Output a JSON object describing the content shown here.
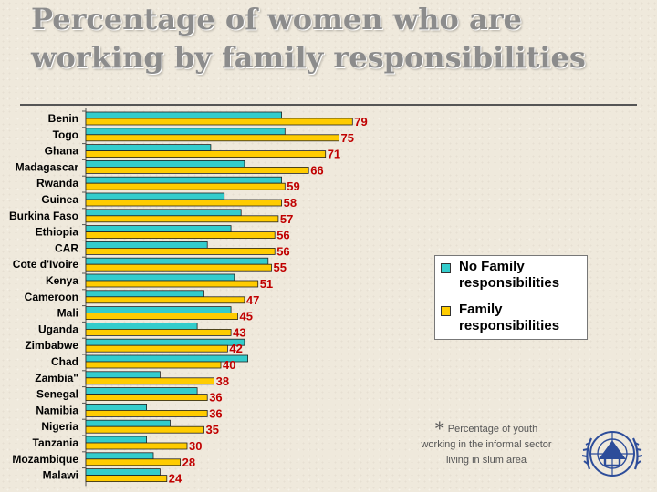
{
  "title": "Percentage of women who are working by family responsibilities",
  "footnote": {
    "marker": "*",
    "text": "Percentage of youth working in the informal sector living in slum area"
  },
  "logo": {
    "name": "UN-HABITAT emblem",
    "color": "#2d4d9a"
  },
  "colors": {
    "no_family": "#33cccc",
    "family": "#ffcc00",
    "bar_outline": "#222222",
    "value_label": "#c00000"
  },
  "chart_data": {
    "type": "bar",
    "orientation": "horizontal",
    "title": "Percentage of women who are working by family responsibilities",
    "categories": [
      "Benin",
      "Togo",
      "Ghana",
      "Madagascar",
      "Rwanda",
      "Guinea",
      "Burkina Faso",
      "Ethiopia",
      "CAR",
      "Cote d'Ivoire",
      "Kenya",
      "Cameroon",
      "Mali",
      "Uganda",
      "Zimbabwe",
      "Chad",
      "Zambia\"",
      "Senegal",
      "Namibia",
      "Nigeria",
      "Tanzania",
      "Mozambique",
      "Malawi"
    ],
    "series": [
      {
        "name": "No Family responsibilities",
        "color": "#33cccc",
        "values": [
          58,
          59,
          37,
          47,
          58,
          41,
          46,
          43,
          36,
          54,
          44,
          35,
          43,
          33,
          47,
          48,
          22,
          33,
          18,
          25,
          18,
          20,
          22
        ]
      },
      {
        "name": "Family responsibilities",
        "color": "#ffcc00",
        "values": [
          79,
          75,
          71,
          66,
          59,
          58,
          57,
          56,
          56,
          55,
          51,
          47,
          45,
          43,
          42,
          40,
          38,
          36,
          36,
          35,
          30,
          28,
          24
        ],
        "data_labels": true
      }
    ],
    "xlim": [
      0,
      100
    ],
    "grid": false,
    "legend_position": "right"
  }
}
